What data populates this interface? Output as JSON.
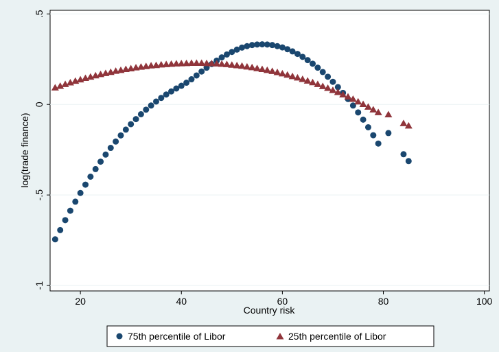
{
  "chart_data": {
    "type": "scatter",
    "xlabel": "Country risk",
    "ylabel": "log(trade finance)",
    "xlim": [
      14,
      101
    ],
    "ylim": [
      -1.03,
      0.52
    ],
    "x_ticks": [
      20,
      40,
      60,
      80,
      100
    ],
    "x_tick_labels": [
      "20",
      "40",
      "60",
      "80",
      "100"
    ],
    "y_ticks": [
      -1,
      -0.5,
      0,
      0.5
    ],
    "y_tick_labels": [
      "-1",
      "-.5",
      "0",
      ".5"
    ],
    "grid": "horizontal",
    "legend_position": "bottom",
    "series": [
      {
        "name": "75th percentile of Libor",
        "marker": "circle",
        "color": "#1a476f",
        "x": [
          15,
          16,
          17,
          18,
          19,
          20,
          21,
          22,
          23,
          24,
          25,
          26,
          27,
          28,
          29,
          30,
          31,
          32,
          33,
          34,
          35,
          36,
          37,
          38,
          39,
          40,
          41,
          42,
          43,
          44,
          45,
          46,
          47,
          48,
          49,
          50,
          51,
          52,
          53,
          54,
          55,
          56,
          57,
          58,
          59,
          60,
          61,
          62,
          63,
          64,
          65,
          66,
          67,
          68,
          69,
          70,
          71,
          72,
          73,
          74,
          75,
          76,
          77,
          78,
          79,
          81,
          84,
          85
        ],
        "y": [
          -0.745,
          -0.694,
          -0.639,
          -0.587,
          -0.537,
          -0.489,
          -0.443,
          -0.399,
          -0.357,
          -0.316,
          -0.277,
          -0.24,
          -0.205,
          -0.171,
          -0.139,
          -0.109,
          -0.081,
          -0.054,
          -0.029,
          -0.006,
          0.016,
          0.036,
          0.055,
          0.072,
          0.088,
          0.103,
          0.12,
          0.139,
          0.16,
          0.182,
          0.203,
          0.223,
          0.242,
          0.26,
          0.276,
          0.29,
          0.303,
          0.314,
          0.322,
          0.328,
          0.331,
          0.332,
          0.331,
          0.328,
          0.322,
          0.315,
          0.305,
          0.293,
          0.279,
          0.263,
          0.245,
          0.225,
          0.203,
          0.179,
          0.153,
          0.125,
          0.096,
          0.064,
          0.03,
          -0.006,
          -0.044,
          -0.084,
          -0.126,
          -0.17,
          -0.216,
          -0.158,
          -0.275,
          -0.313
        ]
      },
      {
        "name": "25th percentile of Libor",
        "marker": "triangle",
        "color": "#90353b",
        "x": [
          15,
          16,
          17,
          18,
          19,
          20,
          21,
          22,
          23,
          24,
          25,
          26,
          27,
          28,
          29,
          30,
          31,
          32,
          33,
          34,
          35,
          36,
          37,
          38,
          39,
          40,
          41,
          42,
          43,
          44,
          45,
          46,
          47,
          48,
          49,
          50,
          51,
          52,
          53,
          54,
          55,
          56,
          57,
          58,
          59,
          60,
          61,
          62,
          63,
          64,
          65,
          66,
          67,
          68,
          69,
          70,
          71,
          72,
          73,
          74,
          75,
          76,
          77,
          78,
          79,
          81,
          84,
          85
        ],
        "y": [
          0.092,
          0.101,
          0.111,
          0.12,
          0.129,
          0.137,
          0.145,
          0.152,
          0.159,
          0.166,
          0.172,
          0.178,
          0.184,
          0.189,
          0.194,
          0.198,
          0.203,
          0.207,
          0.21,
          0.214,
          0.216,
          0.219,
          0.221,
          0.223,
          0.225,
          0.226,
          0.227,
          0.228,
          0.228,
          0.228,
          0.227,
          0.226,
          0.225,
          0.223,
          0.221,
          0.218,
          0.215,
          0.212,
          0.208,
          0.204,
          0.199,
          0.194,
          0.189,
          0.183,
          0.177,
          0.17,
          0.163,
          0.155,
          0.147,
          0.139,
          0.13,
          0.121,
          0.111,
          0.1,
          0.09,
          0.078,
          0.067,
          0.054,
          0.042,
          0.029,
          0.015,
          0.001,
          -0.014,
          -0.029,
          -0.044,
          -0.056,
          -0.105,
          -0.118
        ]
      }
    ]
  }
}
